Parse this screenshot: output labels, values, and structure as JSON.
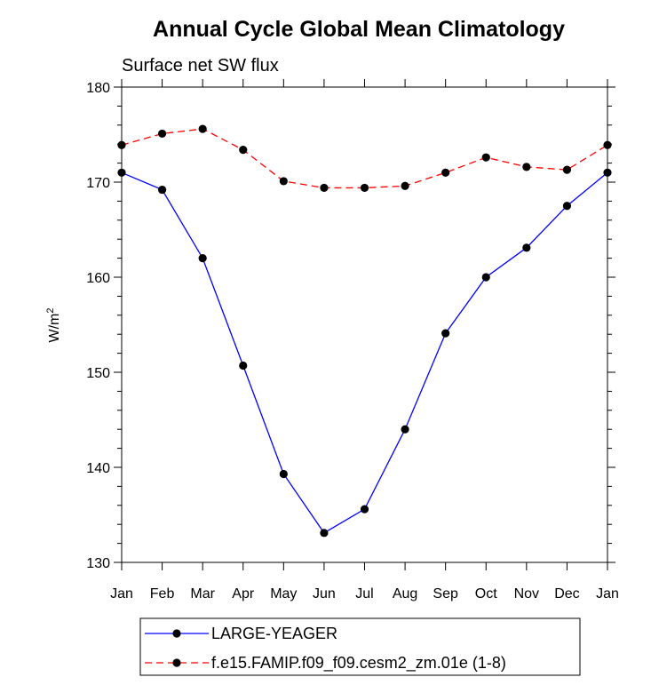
{
  "chart_data": {
    "type": "line",
    "title": "Annual Cycle Global Mean Climatology",
    "subtitle": "Surface net SW flux",
    "ylabel": "W/m",
    "ylabel_superscript": "2",
    "xlabel": "",
    "categories": [
      "Jan",
      "Feb",
      "Mar",
      "Apr",
      "May",
      "Jun",
      "Jul",
      "Aug",
      "Sep",
      "Oct",
      "Nov",
      "Dec",
      "Jan"
    ],
    "ylim": [
      130,
      180
    ],
    "yticks": [
      130,
      140,
      150,
      160,
      170,
      180
    ],
    "ytick_labels": [
      "130",
      "140",
      "150",
      "160",
      "170",
      "180"
    ],
    "grid": false,
    "legend_position": "bottom",
    "series": [
      {
        "name": "LARGE-YEAGER",
        "color": "#0000ff",
        "dash": "solid",
        "values": [
          171.0,
          169.2,
          162.0,
          150.7,
          139.3,
          133.1,
          135.6,
          144.0,
          154.1,
          160.0,
          163.1,
          167.5,
          171.0
        ]
      },
      {
        "name": "f.e15.FAMIP.f09_f09.cesm2_zm.01e (1-8)",
        "color": "#ff0000",
        "dash": "dashed",
        "values": [
          173.9,
          175.1,
          175.6,
          173.4,
          170.1,
          169.4,
          169.4,
          169.6,
          171.0,
          172.6,
          171.6,
          171.3,
          173.9
        ]
      }
    ]
  }
}
